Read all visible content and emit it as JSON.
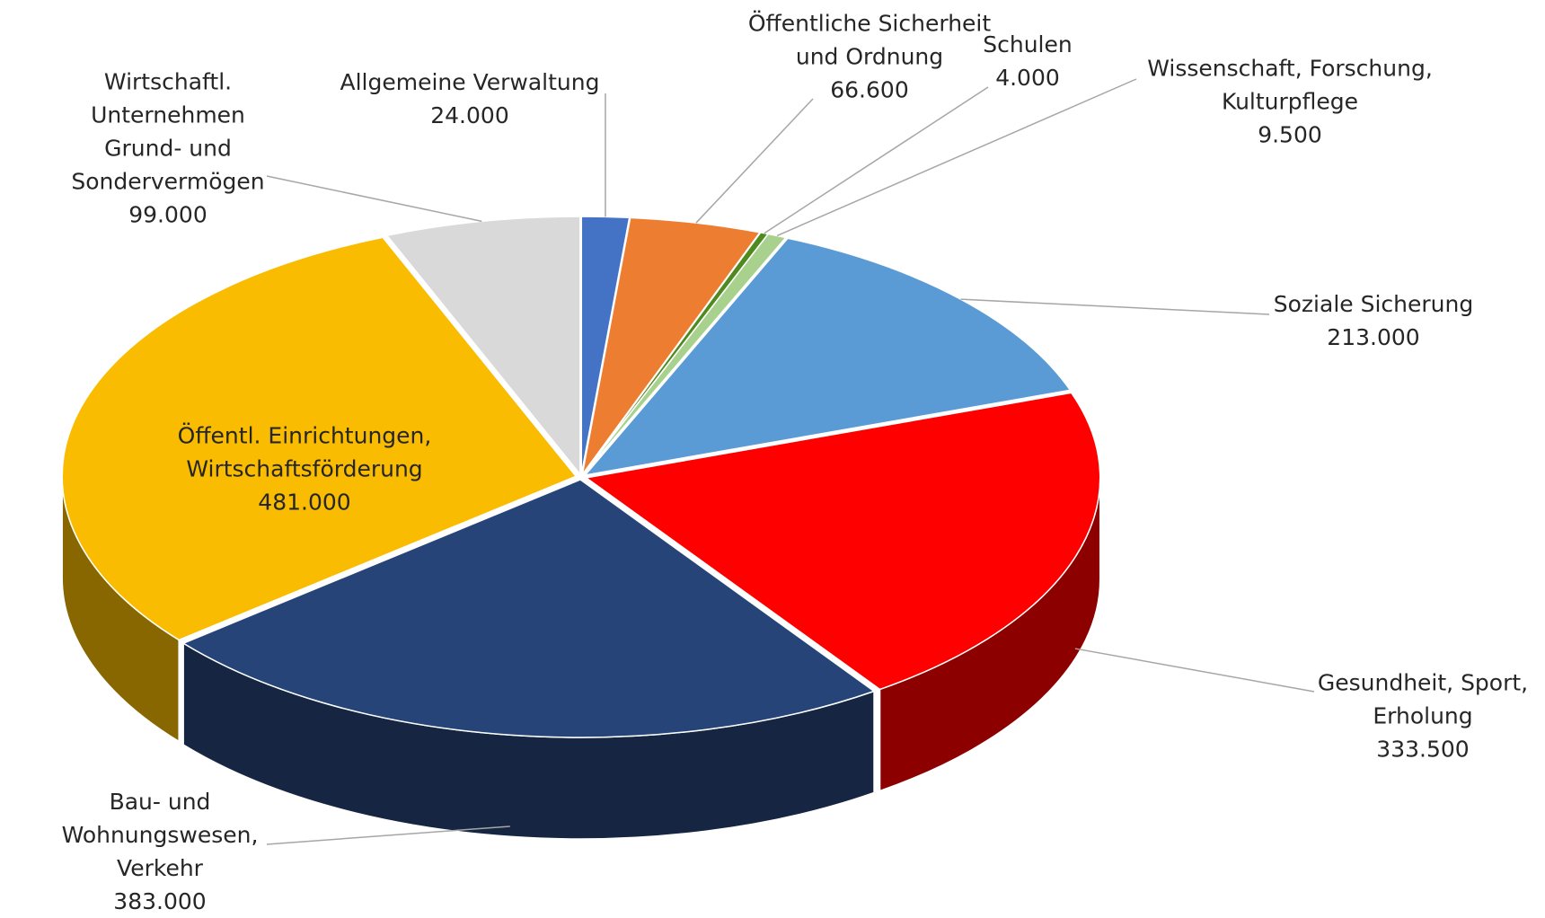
{
  "chart_data": {
    "type": "pie3d",
    "categories": [
      "Allgemeine Verwaltung",
      "Öffentliche Sicherheit und Ordnung",
      "Schulen",
      "Wissenschaft, Forschung, Kulturpflege",
      "Soziale Sicherung",
      "Gesundheit, Sport, Erholung",
      "Bau- und Wohnungswesen, Verkehr",
      "Öffentl. Einrichtungen, Wirtschaftsförderung",
      "Wirtschaftl. Unternehmen Grund- und Sondervermögen"
    ],
    "values": [
      24000,
      66600,
      4000,
      9500,
      213000,
      333500,
      383000,
      481000,
      99000
    ],
    "value_labels": [
      "24.000",
      "66.600",
      "4.000",
      "9.500",
      "213.000",
      "333.500",
      "383.000",
      "481.000",
      "99.000"
    ],
    "colors": [
      "#4472c4",
      "#ed7d31",
      "#4e8a1e",
      "#a9d18e",
      "#5b9bd5",
      "#ff0000",
      "#264478",
      "#f9bc00",
      "#d9d9d9"
    ]
  }
}
